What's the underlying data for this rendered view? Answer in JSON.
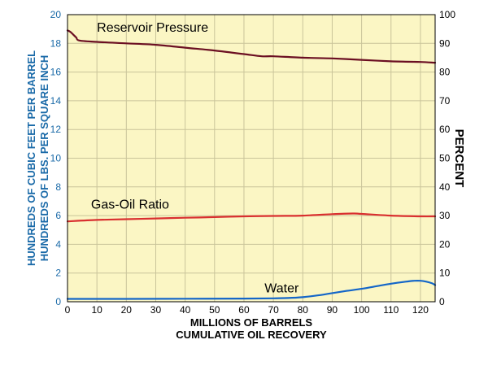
{
  "colors": {
    "plot_bg": "#fbf6c4",
    "grid": "#c9c49a",
    "left_axis": "#1a6aa8",
    "right_axis": "#000000",
    "reservoir_pressure": "#6b0f22",
    "gas_oil_ratio": "#d92f2f",
    "water": "#1466c8"
  },
  "left_axis": {
    "label_line1": "HUNDREDS OF CUBIC FEET PER BARREL",
    "label_line2": "HUNDREDS OF LBS. PER SQUARE INCH"
  },
  "right_axis": {
    "label": "PERCENT"
  },
  "x_axis": {
    "label_line1": "MILLIONS OF BARRELS",
    "label_line2": "CUMULATIVE OIL RECOVERY"
  },
  "chart_data": {
    "type": "line",
    "xlim": [
      0,
      125
    ],
    "x_ticks": [
      0,
      10,
      20,
      30,
      40,
      50,
      60,
      70,
      80,
      90,
      100,
      110,
      120
    ],
    "ylim_left": [
      0,
      20
    ],
    "y_left_ticks": [
      0,
      2,
      4,
      6,
      8,
      10,
      12,
      14,
      16,
      18,
      20
    ],
    "ylim_right": [
      0,
      100
    ],
    "y_right_ticks": [
      0,
      10,
      20,
      30,
      40,
      50,
      60,
      70,
      80,
      90,
      100
    ],
    "grid": true,
    "series": [
      {
        "key": "reservoir_pressure",
        "name": "Reservoir Pressure",
        "axis": "left",
        "label_pos": [
          10,
          18.8
        ],
        "points": [
          [
            0,
            18.9
          ],
          [
            1,
            18.8
          ],
          [
            2,
            18.6
          ],
          [
            3,
            18.4
          ],
          [
            4,
            18.2
          ],
          [
            10,
            18.1
          ],
          [
            20,
            18.0
          ],
          [
            30,
            17.9
          ],
          [
            40,
            17.7
          ],
          [
            50,
            17.5
          ],
          [
            60,
            17.25
          ],
          [
            66,
            17.1
          ],
          [
            70,
            17.1
          ],
          [
            80,
            17.0
          ],
          [
            90,
            16.95
          ],
          [
            100,
            16.85
          ],
          [
            110,
            16.75
          ],
          [
            120,
            16.7
          ],
          [
            125,
            16.65
          ]
        ]
      },
      {
        "key": "gas_oil_ratio",
        "name": "Gas-Oil Ratio",
        "axis": "left",
        "label_pos": [
          8,
          6.5
        ],
        "points": [
          [
            0,
            5.6
          ],
          [
            10,
            5.7
          ],
          [
            20,
            5.75
          ],
          [
            30,
            5.8
          ],
          [
            40,
            5.85
          ],
          [
            50,
            5.9
          ],
          [
            60,
            5.95
          ],
          [
            70,
            5.98
          ],
          [
            80,
            6.0
          ],
          [
            90,
            6.1
          ],
          [
            97,
            6.15
          ],
          [
            100,
            6.12
          ],
          [
            110,
            6.0
          ],
          [
            120,
            5.95
          ],
          [
            125,
            5.95
          ]
        ]
      },
      {
        "key": "water",
        "name": "Water",
        "axis": "right",
        "label_pos": [
          67,
          3.2
        ],
        "points": [
          [
            0,
            1.0
          ],
          [
            10,
            1.0
          ],
          [
            20,
            1.0
          ],
          [
            40,
            1.05
          ],
          [
            60,
            1.1
          ],
          [
            70,
            1.2
          ],
          [
            75,
            1.3
          ],
          [
            80,
            1.6
          ],
          [
            85,
            2.2
          ],
          [
            90,
            3.0
          ],
          [
            95,
            3.8
          ],
          [
            100,
            4.5
          ],
          [
            105,
            5.4
          ],
          [
            110,
            6.3
          ],
          [
            115,
            7.0
          ],
          [
            118,
            7.3
          ],
          [
            120,
            7.3
          ],
          [
            122,
            7.0
          ],
          [
            124,
            6.4
          ],
          [
            125,
            5.8
          ]
        ]
      }
    ]
  }
}
